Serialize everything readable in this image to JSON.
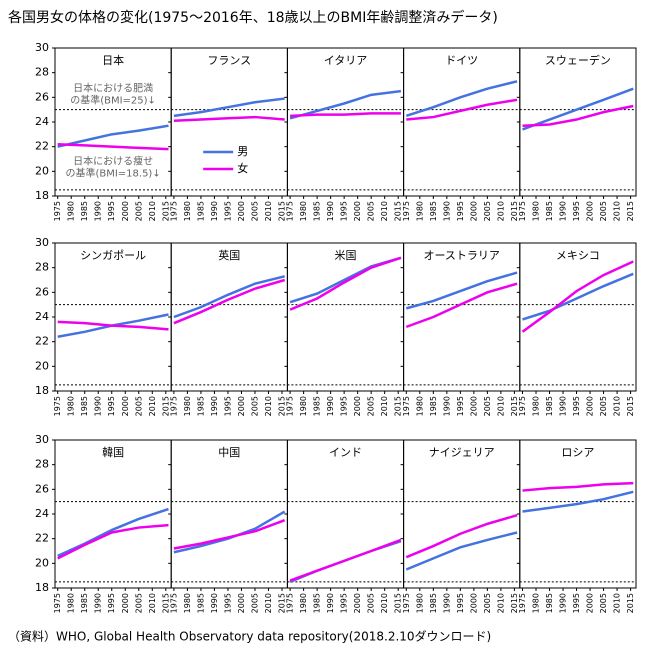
{
  "title": "各国男女の体格の変化(1975〜2016年、18歳以上のBMI年齢調整済みデータ)",
  "source": "（資料）WHO, Global Health Observatory data repository(2018.2.10ダウンロード)",
  "chart_data": [
    {
      "type": "line",
      "title": "日本",
      "x": [
        1975,
        1985,
        1995,
        2005,
        2016
      ],
      "xlim": [
        1974,
        2017
      ],
      "xticks": [
        1975,
        1980,
        1985,
        1990,
        1995,
        2000,
        2005,
        2010,
        2015
      ],
      "ylim": [
        18,
        30
      ],
      "yticks": [
        18,
        20,
        22,
        24,
        26,
        28,
        30
      ],
      "reference_lines": [
        25,
        18.5
      ],
      "legend": false,
      "annotations": [
        [
          "日本における肥満",
          "の基準(BMI=25)↓"
        ],
        [
          "日本における痩せ",
          "の基準(BMI=18.5)↓"
        ]
      ],
      "series": [
        {
          "name": "男",
          "color": "#4472e0",
          "values": [
            22.0,
            22.5,
            23.0,
            23.3,
            23.7
          ]
        },
        {
          "name": "女",
          "color": "#ee00ee",
          "values": [
            22.2,
            22.1,
            22.0,
            21.9,
            21.8
          ]
        }
      ]
    },
    {
      "type": "line",
      "title": "フランス",
      "x": [
        1975,
        1985,
        1995,
        2005,
        2016
      ],
      "xlim": [
        1974,
        2017
      ],
      "xticks": [
        1975,
        1980,
        1985,
        1990,
        1995,
        2000,
        2005,
        2010,
        2015
      ],
      "ylim": [
        18,
        30
      ],
      "yticks": [
        18,
        20,
        22,
        24,
        26,
        28,
        30
      ],
      "reference_lines": [
        25,
        18.5
      ],
      "legend": true,
      "series": [
        {
          "name": "男",
          "color": "#4472e0",
          "values": [
            24.5,
            24.8,
            25.2,
            25.6,
            25.9
          ]
        },
        {
          "name": "女",
          "color": "#ee00ee",
          "values": [
            24.1,
            24.2,
            24.3,
            24.4,
            24.2
          ]
        }
      ]
    },
    {
      "type": "line",
      "title": "イタリア",
      "x": [
        1975,
        1985,
        1995,
        2005,
        2016
      ],
      "xlim": [
        1974,
        2017
      ],
      "xticks": [
        1975,
        1980,
        1985,
        1990,
        1995,
        2000,
        2005,
        2010,
        2015
      ],
      "ylim": [
        18,
        30
      ],
      "yticks": [
        18,
        20,
        22,
        24,
        26,
        28,
        30
      ],
      "reference_lines": [
        25,
        18.5
      ],
      "legend": false,
      "series": [
        {
          "name": "男",
          "color": "#4472e0",
          "values": [
            24.3,
            24.9,
            25.5,
            26.2,
            26.5
          ]
        },
        {
          "name": "女",
          "color": "#ee00ee",
          "values": [
            24.5,
            24.6,
            24.6,
            24.7,
            24.7
          ]
        }
      ]
    },
    {
      "type": "line",
      "title": "ドイツ",
      "x": [
        1975,
        1985,
        1995,
        2005,
        2016
      ],
      "xlim": [
        1974,
        2017
      ],
      "xticks": [
        1975,
        1980,
        1985,
        1990,
        1995,
        2000,
        2005,
        2010,
        2015
      ],
      "ylim": [
        18,
        30
      ],
      "yticks": [
        18,
        20,
        22,
        24,
        26,
        28,
        30
      ],
      "reference_lines": [
        25,
        18.5
      ],
      "legend": false,
      "series": [
        {
          "name": "男",
          "color": "#4472e0",
          "values": [
            24.5,
            25.2,
            26.0,
            26.7,
            27.3
          ]
        },
        {
          "name": "女",
          "color": "#ee00ee",
          "values": [
            24.2,
            24.4,
            24.9,
            25.4,
            25.8
          ]
        }
      ]
    },
    {
      "type": "line",
      "title": "スウェーデン",
      "x": [
        1975,
        1985,
        1995,
        2005,
        2016
      ],
      "xlim": [
        1974,
        2017
      ],
      "xticks": [
        1975,
        1980,
        1985,
        1990,
        1995,
        2000,
        2005,
        2010,
        2015
      ],
      "ylim": [
        18,
        30
      ],
      "yticks": [
        18,
        20,
        22,
        24,
        26,
        28,
        30
      ],
      "reference_lines": [
        25,
        18.5
      ],
      "legend": false,
      "series": [
        {
          "name": "男",
          "color": "#4472e0",
          "values": [
            23.4,
            24.2,
            25.0,
            25.8,
            26.7
          ]
        },
        {
          "name": "女",
          "color": "#ee00ee",
          "values": [
            23.7,
            23.8,
            24.2,
            24.8,
            25.3
          ]
        }
      ]
    },
    {
      "type": "line",
      "title": "シンガポール",
      "x": [
        1975,
        1985,
        1995,
        2005,
        2016
      ],
      "xlim": [
        1974,
        2017
      ],
      "xticks": [
        1975,
        1980,
        1985,
        1990,
        1995,
        2000,
        2005,
        2010,
        2015
      ],
      "ylim": [
        18,
        30
      ],
      "yticks": [
        18,
        20,
        22,
        24,
        26,
        28,
        30
      ],
      "reference_lines": [
        25,
        18.5
      ],
      "legend": false,
      "series": [
        {
          "name": "男",
          "color": "#4472e0",
          "values": [
            22.4,
            22.8,
            23.3,
            23.7,
            24.2
          ]
        },
        {
          "name": "女",
          "color": "#ee00ee",
          "values": [
            23.6,
            23.5,
            23.3,
            23.2,
            23.0
          ]
        }
      ]
    },
    {
      "type": "line",
      "title": "英国",
      "x": [
        1975,
        1985,
        1995,
        2005,
        2016
      ],
      "xlim": [
        1974,
        2017
      ],
      "xticks": [
        1975,
        1980,
        1985,
        1990,
        1995,
        2000,
        2005,
        2010,
        2015
      ],
      "ylim": [
        18,
        30
      ],
      "yticks": [
        18,
        20,
        22,
        24,
        26,
        28,
        30
      ],
      "reference_lines": [
        25,
        18.5
      ],
      "legend": false,
      "series": [
        {
          "name": "男",
          "color": "#4472e0",
          "values": [
            24.0,
            24.8,
            25.8,
            26.7,
            27.3
          ]
        },
        {
          "name": "女",
          "color": "#ee00ee",
          "values": [
            23.5,
            24.4,
            25.4,
            26.3,
            27.0
          ]
        }
      ]
    },
    {
      "type": "line",
      "title": "米国",
      "x": [
        1975,
        1985,
        1995,
        2005,
        2016
      ],
      "xlim": [
        1974,
        2017
      ],
      "xticks": [
        1975,
        1980,
        1985,
        1990,
        1995,
        2000,
        2005,
        2010,
        2015
      ],
      "ylim": [
        18,
        30
      ],
      "yticks": [
        18,
        20,
        22,
        24,
        26,
        28,
        30
      ],
      "reference_lines": [
        25,
        18.5
      ],
      "legend": false,
      "series": [
        {
          "name": "男",
          "color": "#4472e0",
          "values": [
            25.2,
            25.9,
            27.0,
            28.1,
            28.8
          ]
        },
        {
          "name": "女",
          "color": "#ee00ee",
          "values": [
            24.6,
            25.5,
            26.8,
            28.0,
            28.8
          ]
        }
      ]
    },
    {
      "type": "line",
      "title": "オーストラリア",
      "x": [
        1975,
        1985,
        1995,
        2005,
        2016
      ],
      "xlim": [
        1974,
        2017
      ],
      "xticks": [
        1975,
        1980,
        1985,
        1990,
        1995,
        2000,
        2005,
        2010,
        2015
      ],
      "ylim": [
        18,
        30
      ],
      "yticks": [
        18,
        20,
        22,
        24,
        26,
        28,
        30
      ],
      "reference_lines": [
        25,
        18.5
      ],
      "legend": false,
      "series": [
        {
          "name": "男",
          "color": "#4472e0",
          "values": [
            24.7,
            25.3,
            26.1,
            26.9,
            27.6
          ]
        },
        {
          "name": "女",
          "color": "#ee00ee",
          "values": [
            23.2,
            24.0,
            25.0,
            26.0,
            26.7
          ]
        }
      ]
    },
    {
      "type": "line",
      "title": "メキシコ",
      "x": [
        1975,
        1985,
        1995,
        2005,
        2016
      ],
      "xlim": [
        1974,
        2017
      ],
      "xticks": [
        1975,
        1980,
        1985,
        1990,
        1995,
        2000,
        2005,
        2010,
        2015
      ],
      "ylim": [
        18,
        30
      ],
      "yticks": [
        18,
        20,
        22,
        24,
        26,
        28,
        30
      ],
      "reference_lines": [
        25,
        18.5
      ],
      "legend": false,
      "series": [
        {
          "name": "男",
          "color": "#4472e0",
          "values": [
            23.8,
            24.5,
            25.5,
            26.5,
            27.5
          ]
        },
        {
          "name": "女",
          "color": "#ee00ee",
          "values": [
            22.8,
            24.4,
            26.1,
            27.4,
            28.5
          ]
        }
      ]
    },
    {
      "type": "line",
      "title": "韓国",
      "x": [
        1975,
        1985,
        1995,
        2005,
        2016
      ],
      "xlim": [
        1974,
        2017
      ],
      "xticks": [
        1975,
        1980,
        1985,
        1990,
        1995,
        2000,
        2005,
        2010,
        2015
      ],
      "ylim": [
        18,
        30
      ],
      "yticks": [
        18,
        20,
        22,
        24,
        26,
        28,
        30
      ],
      "reference_lines": [
        25,
        18.5
      ],
      "legend": false,
      "series": [
        {
          "name": "男",
          "color": "#4472e0",
          "values": [
            20.6,
            21.6,
            22.7,
            23.6,
            24.4
          ]
        },
        {
          "name": "女",
          "color": "#ee00ee",
          "values": [
            20.4,
            21.5,
            22.5,
            22.9,
            23.1
          ]
        }
      ]
    },
    {
      "type": "line",
      "title": "中国",
      "x": [
        1975,
        1985,
        1995,
        2005,
        2016
      ],
      "xlim": [
        1974,
        2017
      ],
      "xticks": [
        1975,
        1980,
        1985,
        1990,
        1995,
        2000,
        2005,
        2010,
        2015
      ],
      "ylim": [
        18,
        30
      ],
      "yticks": [
        18,
        20,
        22,
        24,
        26,
        28,
        30
      ],
      "reference_lines": [
        25,
        18.5
      ],
      "legend": false,
      "series": [
        {
          "name": "男",
          "color": "#4472e0",
          "values": [
            20.9,
            21.4,
            22.0,
            22.8,
            24.2
          ]
        },
        {
          "name": "女",
          "color": "#ee00ee",
          "values": [
            21.2,
            21.6,
            22.1,
            22.6,
            23.5
          ]
        }
      ]
    },
    {
      "type": "line",
      "title": "インド",
      "x": [
        1975,
        1985,
        1995,
        2005,
        2016
      ],
      "xlim": [
        1974,
        2017
      ],
      "xticks": [
        1975,
        1980,
        1985,
        1990,
        1995,
        2000,
        2005,
        2010,
        2015
      ],
      "ylim": [
        18,
        30
      ],
      "yticks": [
        18,
        20,
        22,
        24,
        26,
        28,
        30
      ],
      "reference_lines": [
        25,
        18.5
      ],
      "legend": false,
      "series": [
        {
          "name": "男",
          "color": "#4472e0",
          "values": [
            18.5,
            19.4,
            20.2,
            21.0,
            21.8
          ]
        },
        {
          "name": "女",
          "color": "#ee00ee",
          "values": [
            18.6,
            19.4,
            20.2,
            21.0,
            21.9
          ]
        }
      ]
    },
    {
      "type": "line",
      "title": "ナイジェリア",
      "x": [
        1975,
        1985,
        1995,
        2005,
        2016
      ],
      "xlim": [
        1974,
        2017
      ],
      "xticks": [
        1975,
        1980,
        1985,
        1990,
        1995,
        2000,
        2005,
        2010,
        2015
      ],
      "ylim": [
        18,
        30
      ],
      "yticks": [
        18,
        20,
        22,
        24,
        26,
        28,
        30
      ],
      "reference_lines": [
        25,
        18.5
      ],
      "legend": false,
      "series": [
        {
          "name": "男",
          "color": "#4472e0",
          "values": [
            19.5,
            20.4,
            21.3,
            21.9,
            22.5
          ]
        },
        {
          "name": "女",
          "color": "#ee00ee",
          "values": [
            20.5,
            21.4,
            22.4,
            23.2,
            23.9
          ]
        }
      ]
    },
    {
      "type": "line",
      "title": "ロシア",
      "x": [
        1975,
        1985,
        1995,
        2005,
        2016
      ],
      "xlim": [
        1974,
        2017
      ],
      "xticks": [
        1975,
        1980,
        1985,
        1990,
        1995,
        2000,
        2005,
        2010,
        2015
      ],
      "ylim": [
        18,
        30
      ],
      "yticks": [
        18,
        20,
        22,
        24,
        26,
        28,
        30
      ],
      "reference_lines": [
        25,
        18.5
      ],
      "legend": false,
      "series": [
        {
          "name": "男",
          "color": "#4472e0",
          "values": [
            24.2,
            24.5,
            24.8,
            25.2,
            25.8
          ]
        },
        {
          "name": "女",
          "color": "#ee00ee",
          "values": [
            25.9,
            26.1,
            26.2,
            26.4,
            26.5
          ]
        }
      ]
    }
  ]
}
